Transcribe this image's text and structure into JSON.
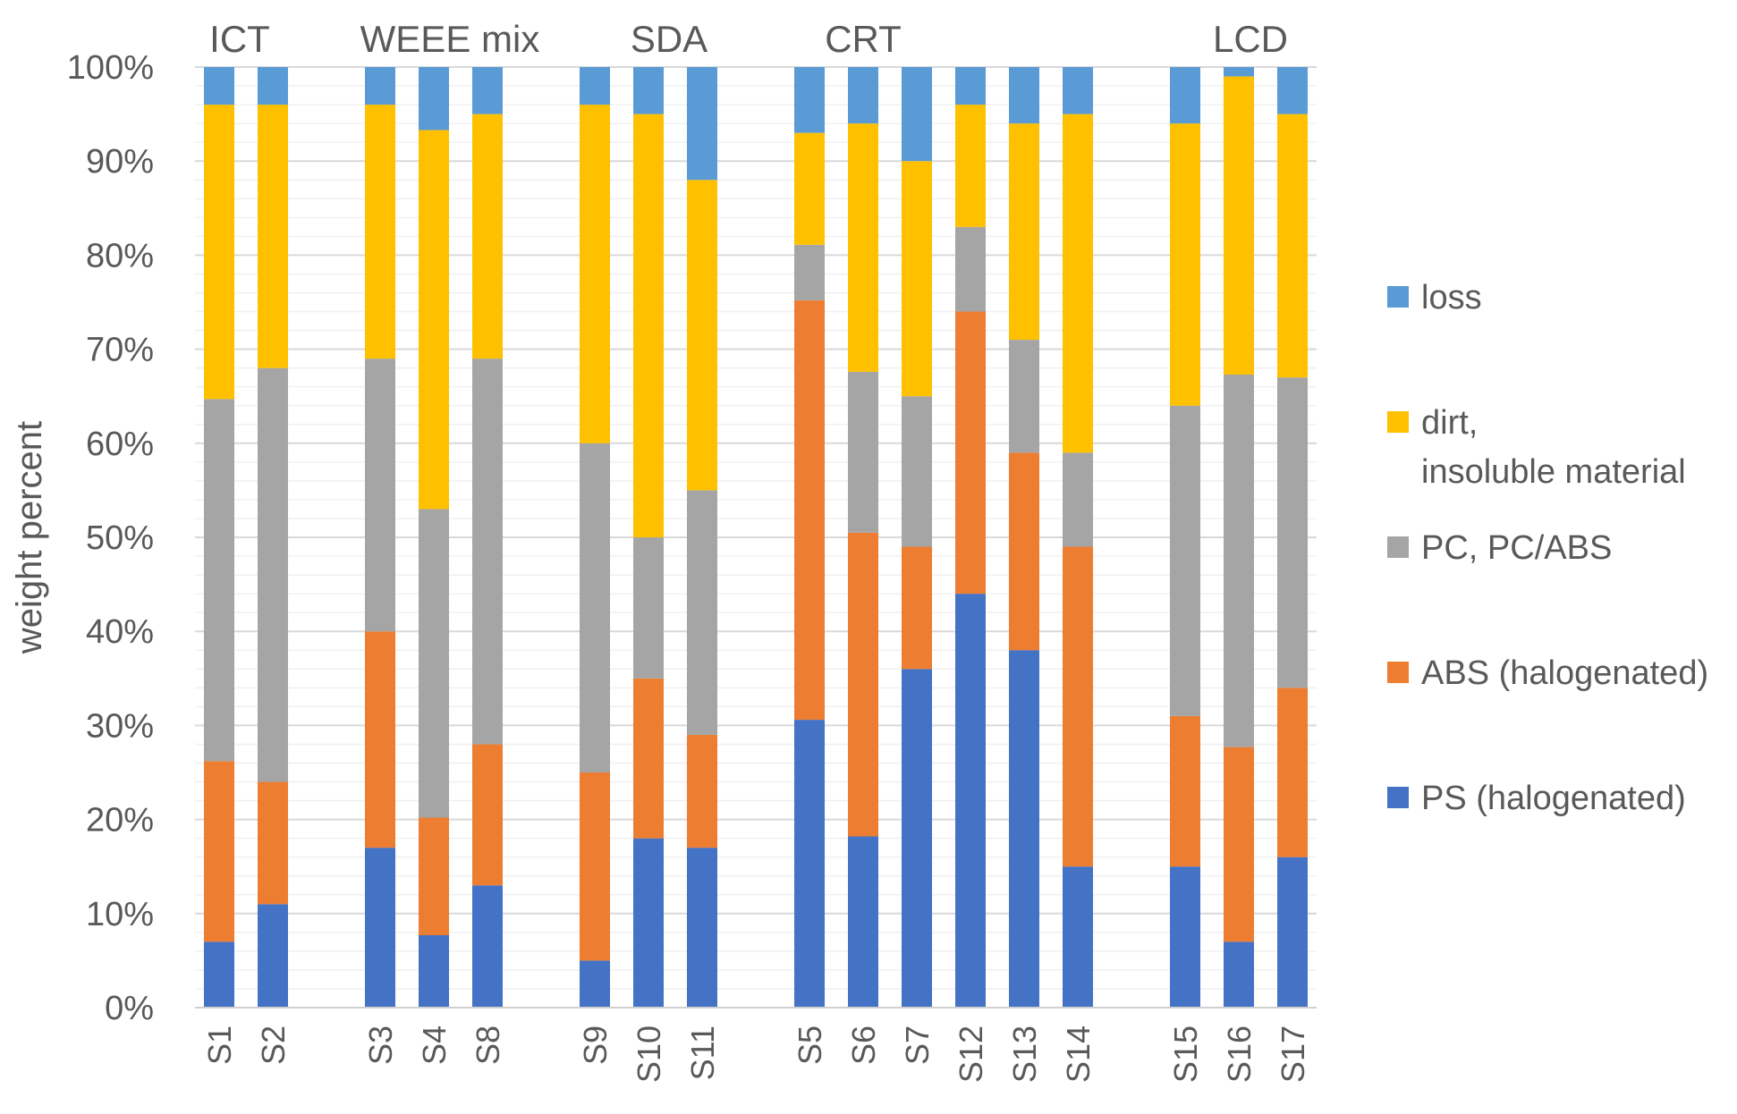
{
  "chart_data": {
    "type": "bar",
    "stacked": true,
    "normalized": true,
    "title": "",
    "xlabel": "",
    "ylabel": "weight percent",
    "ylim": [
      0,
      100
    ],
    "yticks": [
      "0%",
      "10%",
      "20%",
      "30%",
      "40%",
      "50%",
      "60%",
      "70%",
      "80%",
      "90%",
      "100%"
    ],
    "grid": "horizontal",
    "legend_position": "right",
    "groups": [
      {
        "name": "ICT",
        "categories": [
          "S1",
          "S2"
        ]
      },
      {
        "name": "WEEE mix",
        "categories": [
          "S3",
          "S4",
          "S8"
        ]
      },
      {
        "name": "SDA",
        "categories": [
          "S9",
          "S10",
          "S11"
        ]
      },
      {
        "name": "CRT",
        "categories": [
          "S5",
          "S6",
          "S7",
          "S12",
          "S13",
          "S14"
        ]
      },
      {
        "name": "LCD",
        "categories": [
          "S15",
          "S16",
          "S17"
        ]
      }
    ],
    "categories": [
      "S1",
      "S2",
      "S3",
      "S4",
      "S8",
      "S9",
      "S10",
      "S11",
      "S5",
      "S6",
      "S7",
      "S12",
      "S13",
      "S14",
      "S15",
      "S16",
      "S17"
    ],
    "series": [
      {
        "name": "PS (halogenated)",
        "color": "#4472C4",
        "values": [
          7,
          11,
          17,
          7.7,
          13,
          5,
          18,
          17,
          30.6,
          18.2,
          36,
          44,
          38,
          15,
          15,
          7,
          16
        ]
      },
      {
        "name": "ABS (halogenated)",
        "color": "#ED7D31",
        "values": [
          19.2,
          13,
          23,
          12.5,
          15,
          20,
          17,
          12,
          44.6,
          32.3,
          13,
          30,
          21,
          34,
          16,
          20.7,
          18
        ]
      },
      {
        "name": "PC, PC/ABS",
        "color": "#A5A5A5",
        "values": [
          38.5,
          44,
          29,
          32.8,
          41,
          35,
          15,
          26,
          5.9,
          17.1,
          16,
          9,
          12,
          10,
          33,
          39.6,
          33
        ]
      },
      {
        "name": "dirt,\ninsoluble material",
        "color": "#FFC000",
        "values": [
          31.3,
          28,
          27,
          40.3,
          26,
          36,
          45,
          33,
          11.9,
          26.4,
          25,
          13,
          23,
          36,
          30,
          31.7,
          28
        ]
      },
      {
        "name": "loss",
        "color": "#5B9BD5",
        "values": [
          4,
          4,
          4,
          6.7,
          5,
          4,
          5,
          12,
          7,
          6,
          10,
          4,
          6,
          5,
          6,
          1,
          5
        ]
      }
    ]
  }
}
